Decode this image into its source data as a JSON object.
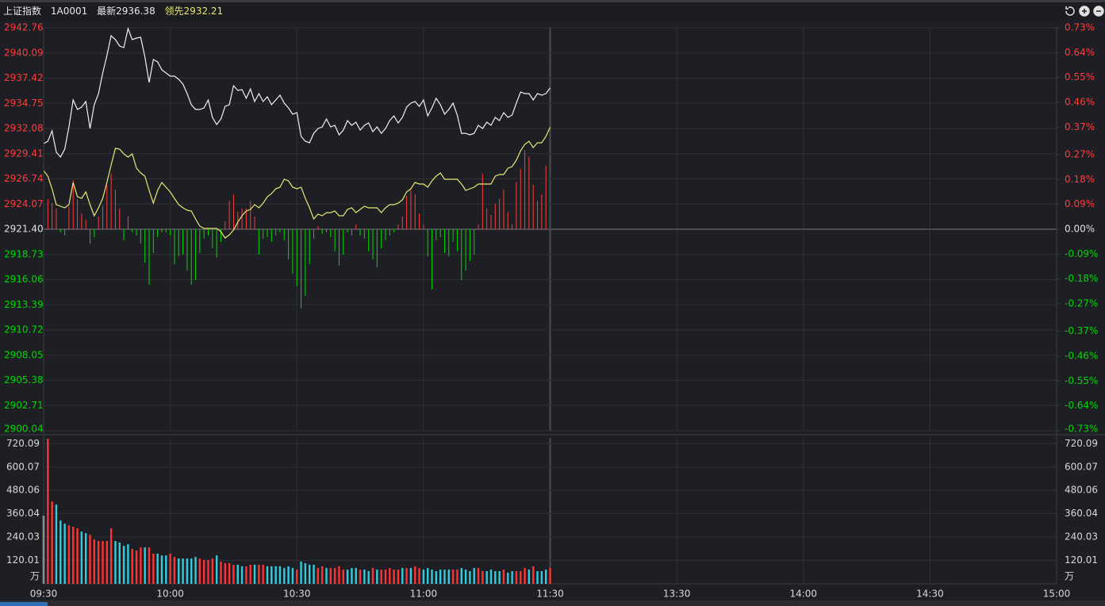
{
  "header": {
    "name": "上证指数",
    "code": "1A0001",
    "latest_label": "最新",
    "latest": 2936.38,
    "lead_label": "领先",
    "lead": 2932.21
  },
  "chart_data": [
    {
      "type": "line",
      "xlim": [
        0,
        240
      ],
      "ylim": [
        2900.04,
        2942.76
      ],
      "yticks": [
        2942.76,
        2940.09,
        2937.42,
        2934.75,
        2932.08,
        2929.41,
        2926.74,
        2924.07,
        {
          "value": 2921.4,
          "label": "2921.40"
        },
        2918.73,
        2916.06,
        2913.39,
        2910.72,
        2908.05,
        2905.38,
        2902.71,
        2900.04
      ],
      "y2lim": [
        -0.73,
        0.73
      ],
      "y2ticks": [
        {
          "value": 0.73,
          "label": "0.73%"
        },
        {
          "value": 0.64,
          "label": "0.64%"
        },
        {
          "value": 0.55,
          "label": "0.55%"
        },
        {
          "value": 0.46,
          "label": "0.46%"
        },
        {
          "value": 0.37,
          "label": "0.37%"
        },
        {
          "value": 0.27,
          "label": "0.27%"
        },
        {
          "value": 0.18,
          "label": "0.18%"
        },
        {
          "value": 0.09,
          "label": "0.09%"
        },
        {
          "value": 0,
          "label": "0.00%"
        },
        {
          "value": -0.09,
          "label": "-0.09%"
        },
        {
          "value": -0.18,
          "label": "-0.18%"
        },
        {
          "value": -0.27,
          "label": "-0.27%"
        },
        {
          "value": -0.37,
          "label": "-0.37%"
        },
        {
          "value": -0.46,
          "label": "-0.46%"
        },
        {
          "value": -0.55,
          "label": "-0.55%"
        },
        {
          "value": -0.64,
          "label": "-0.64%"
        },
        {
          "value": -0.73,
          "label": "-0.73%"
        }
      ],
      "grid": true,
      "up_color": "#ff3c3c",
      "down_color": "#00d800",
      "series": [
        {
          "color": "#f0f0f0",
          "values": [
            2930.48,
            2930.73,
            2931.83,
            2929.56,
            2929.05,
            2929.89,
            2932.25,
            2935.11,
            2934.1,
            2934.35,
            2934.94,
            2932.08,
            2934.6,
            2935.78,
            2937.97,
            2939.82,
            2941.92,
            2941.5,
            2940.83,
            2940.66,
            2942.68,
            2941.5,
            2941.67,
            2941.75,
            2939.65,
            2936.96,
            2939.4,
            2939.14,
            2938.3,
            2937.97,
            2937.63,
            2937.63,
            2937.29,
            2936.79,
            2935.78,
            2934.6,
            2934.1,
            2934.1,
            2934.27,
            2935.11,
            2933.26,
            2932.5,
            2933.09,
            2934.43,
            2934.6,
            2936.62,
            2936.12,
            2936.2,
            2935.28,
            2936.28,
            2934.94,
            2935.78,
            2934.94,
            2935.44,
            2934.6,
            2935.11,
            2935.61,
            2934.77,
            2934.27,
            2933.59,
            2933.76,
            2931.24,
            2930.73,
            2930.57,
            2931.57,
            2932.08,
            2932.25,
            2933.09,
            2932.25,
            2932.42,
            2931.41,
            2931.91,
            2932.92,
            2932.42,
            2932.75,
            2931.91,
            2932.42,
            2932.67,
            2931.74,
            2932.25,
            2931.57,
            2932.08,
            2932.92,
            2933.42,
            2932.67,
            2933.26,
            2934.35,
            2934.77,
            2934.94,
            2934.43,
            2935.11,
            2933.42,
            2934.27,
            2935.28,
            2934.6,
            2933.59,
            2934.1,
            2934.77,
            2933.51,
            2931.57,
            2931.57,
            2931.41,
            2931.57,
            2932.42,
            2932.08,
            2932.75,
            2932.42,
            2933.26,
            2932.92,
            2933.76,
            2933.26,
            2933.51,
            2934.77,
            2935.95,
            2935.78,
            2935.78,
            2935.11,
            2935.78,
            2935.61,
            2935.78,
            2936.38
          ]
        },
        {
          "color": "#e8e870",
          "values": [
            2927.62,
            2927.03,
            2925.69,
            2924.01,
            2923.84,
            2923.67,
            2924.01,
            2926.36,
            2924.85,
            2924.68,
            2925.35,
            2924.01,
            2922.83,
            2923.67,
            2924.68,
            2926.36,
            2928.21,
            2929.98,
            2929.89,
            2929.39,
            2929.05,
            2929.39,
            2927.87,
            2927.37,
            2927.03,
            2925.52,
            2924.17,
            2925.52,
            2926.36,
            2925.86,
            2925.35,
            2924.68,
            2924.01,
            2923.67,
            2923.42,
            2923.33,
            2922.49,
            2921.73,
            2921.48,
            2921.48,
            2921.48,
            2921.48,
            2921.15,
            2920.47,
            2920.81,
            2921.31,
            2922.16,
            2922.83,
            2923.33,
            2923.5,
            2924.01,
            2923.67,
            2924.17,
            2924.85,
            2925.18,
            2925.69,
            2925.86,
            2926.7,
            2926.53,
            2925.86,
            2925.69,
            2925.86,
            2924.68,
            2923.67,
            2922.49,
            2923.0,
            2922.83,
            2923.16,
            2923.16,
            2923.33,
            2922.83,
            2922.83,
            2923.5,
            2923.67,
            2923.16,
            2923.5,
            2923.84,
            2923.67,
            2923.67,
            2923.67,
            2923.16,
            2923.67,
            2924.01,
            2924.01,
            2924.17,
            2924.51,
            2925.35,
            2925.69,
            2926.36,
            2926.19,
            2926.19,
            2925.86,
            2926.53,
            2927.03,
            2927.37,
            2926.7,
            2926.7,
            2926.7,
            2926.7,
            2926.19,
            2925.52,
            2925.69,
            2925.86,
            2926.19,
            2926.19,
            2926.19,
            2926.19,
            2927.03,
            2927.2,
            2927.2,
            2927.87,
            2928.04,
            2928.72,
            2929.72,
            2930.4,
            2930.73,
            2930.06,
            2930.57,
            2930.57,
            2931.24,
            2932.21
          ]
        },
        {
          "type": "bar",
          "axis": "y2",
          "values": [
            null,
            0.109,
            0.095,
            0.075,
            -0.011,
            -0.023,
            0.08,
            0.178,
            0.109,
            0.057,
            0.034,
            -0.052,
            -0.029,
            0.046,
            0.086,
            0.161,
            0.201,
            0.144,
            0.075,
            -0.04,
            0.046,
            -0.011,
            -0.023,
            -0.052,
            -0.121,
            -0.201,
            -0.086,
            -0.029,
            -0.011,
            -0.011,
            -0.023,
            -0.126,
            -0.098,
            -0.092,
            -0.149,
            -0.201,
            -0.184,
            -0.086,
            -0.034,
            -0.023,
            -0.069,
            -0.103,
            -0.046,
            0.029,
            0.103,
            0.126,
            0.063,
            0.075,
            0.075,
            0.103,
            0.046,
            -0.092,
            -0.034,
            -0.029,
            -0.046,
            -0.023,
            -0.011,
            -0.04,
            -0.109,
            -0.161,
            -0.207,
            -0.287,
            -0.241,
            -0.126,
            -0.034,
            0.011,
            -0.017,
            -0.011,
            -0.029,
            -0.08,
            -0.132,
            -0.092,
            -0.011,
            -0.023,
            0.017,
            -0.023,
            -0.034,
            -0.08,
            -0.109,
            -0.138,
            -0.069,
            -0.04,
            -0.023,
            -0.011,
            0.017,
            0.046,
            0.121,
            0.144,
            0.126,
            0.057,
            0.017,
            -0.098,
            -0.218,
            -0.04,
            -0.029,
            -0.086,
            -0.098,
            -0.046,
            -0.08,
            -0.184,
            -0.149,
            -0.115,
            -0.092,
            0.017,
            0.201,
            0.075,
            0.052,
            0.092,
            0.109,
            0.144,
            0.063,
            0.017,
            0.172,
            0.218,
            0.287,
            0.264,
            0.161,
            0.103,
            0.126,
            0.23,
            null
          ]
        }
      ]
    },
    {
      "type": "bar",
      "xlim": [
        0,
        240
      ],
      "xticks": [
        {
          "value": 0,
          "label": "09:30"
        },
        {
          "value": 30,
          "label": "10:00"
        },
        {
          "value": 60,
          "label": "10:30"
        },
        {
          "value": 90,
          "label": "11:00"
        },
        {
          "value": 120,
          "label": "11:30"
        },
        {
          "value": 150,
          "label": "13:30"
        },
        {
          "value": 180,
          "label": "14:00"
        },
        {
          "value": 210,
          "label": "14:30"
        },
        {
          "value": 240,
          "label": "15:00"
        }
      ],
      "ylim": [
        0,
        750
      ],
      "yticks": [
        120.01,
        240.03,
        360.04,
        480.06,
        600.07,
        720.09
      ],
      "unit": "万",
      "grid": true,
      "values": [
        350,
        745,
        423,
        407,
        325,
        309,
        301,
        293,
        285,
        269,
        260,
        252,
        228,
        220,
        220,
        220,
        285,
        220,
        212,
        195,
        203,
        179,
        171,
        187,
        187,
        187,
        155,
        155,
        146,
        146,
        155,
        138,
        130,
        130,
        130,
        130,
        138,
        130,
        122,
        122,
        130,
        146,
        114,
        106,
        106,
        98,
        98,
        90,
        90,
        98,
        98,
        98,
        98,
        90,
        90,
        90,
        90,
        81,
        90,
        81,
        73,
        114,
        106,
        98,
        98,
        81,
        90,
        81,
        81,
        81,
        90,
        73,
        73,
        81,
        81,
        73,
        73,
        65,
        81,
        73,
        73,
        73,
        81,
        73,
        73,
        81,
        81,
        81,
        90,
        81,
        73,
        81,
        73,
        65,
        73,
        73,
        73,
        73,
        73,
        81,
        73,
        65,
        81,
        81,
        65,
        65,
        73,
        65,
        65,
        73,
        57,
        65,
        65,
        65,
        81,
        73,
        90,
        65,
        65,
        73,
        81
      ],
      "colors": [
        "#ddd",
        "#f33",
        "#f33",
        "#3cd",
        "#3cd",
        "#3cd",
        "#f33",
        "#f33",
        "#f33",
        "#3cd",
        "#3cd",
        "#f33",
        "#f33",
        "#f33",
        "#f33",
        "#f33",
        "#f33",
        "#3cd",
        "#3cd",
        "#3cd",
        "#3cd",
        "#f33",
        "#f33",
        "#f33",
        "#3cd",
        "#f33",
        "#f33",
        "#3cd",
        "#3cd",
        "#3cd",
        "#f33",
        "#f33",
        "#3cd",
        "#3cd",
        "#3cd",
        "#3cd",
        "#3cd",
        "#f33",
        "#f33",
        "#f33",
        "#f33",
        "#3cd",
        "#f33",
        "#f33",
        "#f33",
        "#f33",
        "#3cd",
        "#3cd",
        "#f33",
        "#f33",
        "#3cd",
        "#f33",
        "#f33",
        "#3cd",
        "#3cd",
        "#3cd",
        "#3cd",
        "#3cd",
        "#3cd",
        "#3cd",
        "#f33",
        "#3cd",
        "#3cd",
        "#3cd",
        "#3cd",
        "#f33",
        "#f33",
        "#3cd",
        "#f33",
        "#f33",
        "#f33",
        "#f33",
        "#3cd",
        "#3cd",
        "#3cd",
        "#f33",
        "#3cd",
        "#3cd",
        "#f33",
        "#3cd",
        "#f33",
        "#f33",
        "#f33",
        "#f33",
        "#f33",
        "#3cd",
        "#f33",
        "#3cd",
        "#f33",
        "#f33",
        "#3cd",
        "#3cd",
        "#3cd",
        "#3cd",
        "#3cd",
        "#3cd",
        "#3cd",
        "#f33",
        "#f33",
        "#3cd",
        "#3cd",
        "#3cd",
        "#3cd",
        "#f33",
        "#f33",
        "#3cd",
        "#3cd",
        "#3cd",
        "#3cd",
        "#f33",
        "#3cd",
        "#3cd",
        "#f33",
        "#f33",
        "#f33",
        "#3cd",
        "#f33",
        "#3cd",
        "#3cd",
        "#3cd",
        "#f33"
      ]
    }
  ]
}
